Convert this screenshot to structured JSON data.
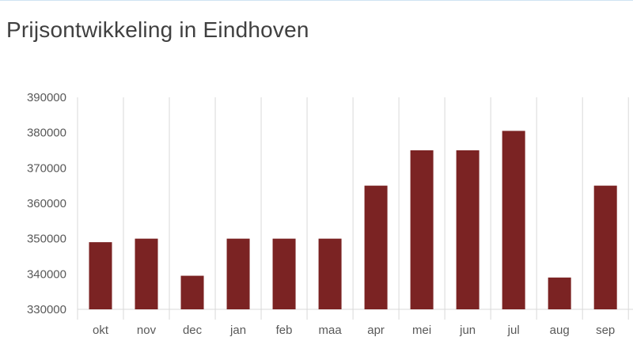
{
  "chart_data": {
    "type": "bar",
    "title": "Prijsontwikkeling in Eindhoven",
    "xlabel": "",
    "ylabel": "",
    "categories": [
      "okt",
      "nov",
      "dec",
      "jan",
      "feb",
      "maa",
      "apr",
      "mei",
      "jun",
      "jul",
      "aug",
      "sep"
    ],
    "values": [
      349000,
      350000,
      339500,
      350000,
      350000,
      350000,
      365000,
      375000,
      375000,
      380500,
      339000,
      365000
    ],
    "ylim": [
      330000,
      390000
    ],
    "yticks": [
      "330000",
      "340000",
      "350000",
      "360000",
      "370000",
      "380000",
      "390000"
    ],
    "grid": "vertical",
    "legend": "none",
    "bar_color": "#7b2323",
    "grid_color": "#d9d9d9"
  }
}
